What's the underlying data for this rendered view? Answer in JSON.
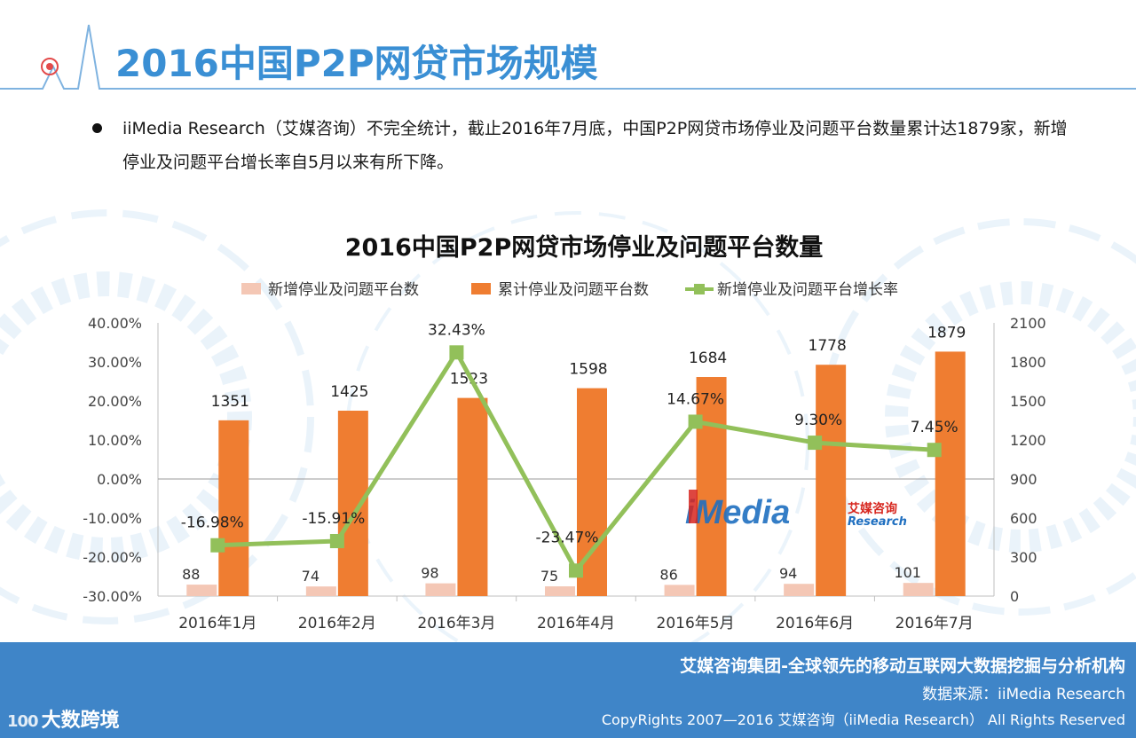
{
  "header": {
    "title": "2016中国P2P网贷市场规模"
  },
  "bullet": {
    "text": "iiMedia Research（艾媒咨询）不完全统计，截止2016年7月底，中国P2P网贷市场停业及问题平台数量累计达1879家，新增停业及问题平台增长率自5月以来有所下降。"
  },
  "chart_data": {
    "type": "bar",
    "title": "2016中国P2P网贷市场停业及问题平台数量",
    "categories": [
      "2016年1月",
      "2016年2月",
      "2016年3月",
      "2016年4月",
      "2016年5月",
      "2016年6月",
      "2016年7月"
    ],
    "series": [
      {
        "name": "新增停业及问题平台数",
        "kind": "bar",
        "axis": "right",
        "color": "#f4c7b5",
        "values": [
          88,
          74,
          98,
          75,
          86,
          94,
          101
        ],
        "labels": [
          "88",
          "74",
          "98",
          "75",
          "86",
          "94",
          "101"
        ]
      },
      {
        "name": "累计停业及问题平台数",
        "kind": "bar",
        "axis": "right",
        "color": "#ef7d31",
        "values": [
          1351,
          1425,
          1523,
          1598,
          1684,
          1778,
          1879
        ],
        "labels": [
          "1351",
          "1425",
          "1523",
          "1598",
          "1684",
          "1778",
          "1879"
        ]
      },
      {
        "name": "新增停业及问题平台增长率",
        "kind": "line",
        "axis": "left",
        "color": "#92c05a",
        "values": [
          -16.98,
          -15.91,
          32.43,
          -23.47,
          14.67,
          9.3,
          7.45
        ],
        "labels": [
          "-16.98%",
          "-15.91%",
          "32.43%",
          "-23.47%",
          "14.67%",
          "9.30%",
          "7.45%"
        ]
      }
    ],
    "y_left": {
      "min": -30,
      "max": 40,
      "ticks": [
        "40.00%",
        "30.00%",
        "20.00%",
        "10.00%",
        "0.00%",
        "-10.00%",
        "-20.00%",
        "-30.00%"
      ]
    },
    "y_right": {
      "min": 0,
      "max": 2100,
      "ticks": [
        "2100",
        "1800",
        "1500",
        "1200",
        "900",
        "600",
        "300",
        "0"
      ]
    },
    "legend_position": "top",
    "grid": false
  },
  "watermark": {
    "brand": "iMedia",
    "cn": "艾媒咨询",
    "en": "Research"
  },
  "footer": {
    "line1": "艾媒咨询集团-全球领先的移动互联网大数据挖掘与分析机构",
    "line2": "数据来源：iiMedia Research",
    "line3": "CopyRights 2007—2016 艾媒咨询（iiMedia Research） All Rights Reserved"
  },
  "corner_logo": {
    "num": "100",
    "text": "大数跨境"
  }
}
